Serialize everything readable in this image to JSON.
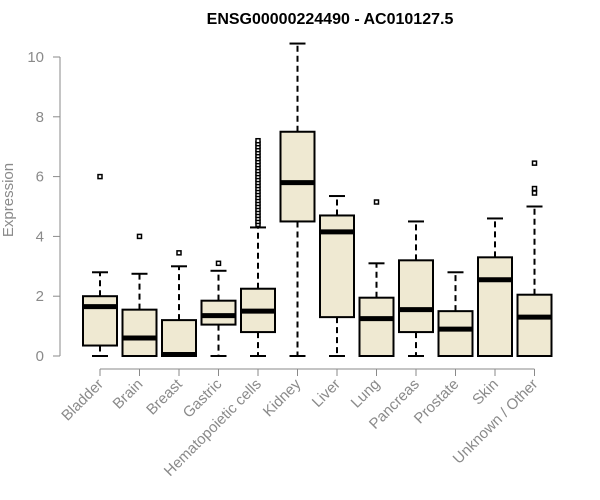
{
  "chart_data": {
    "type": "box",
    "title": "ENSG00000224490 - AC010127.5",
    "xlabel": "",
    "ylabel": "Expression",
    "ylim": [
      0,
      10.5
    ],
    "yticks": [
      0,
      2,
      4,
      6,
      8,
      10
    ],
    "grid": false,
    "legend": "none",
    "categories": [
      "Bladder",
      "Brain",
      "Breast",
      "Gastric",
      "Hematopoietic cells",
      "Kidney",
      "Liver",
      "Lung",
      "Pancreas",
      "Prostate",
      "Skin",
      "Unknown / Other"
    ],
    "boxes": [
      {
        "whisker_low": 0.0,
        "q1": 0.35,
        "median": 1.65,
        "q3": 2.0,
        "whisker_high": 2.8,
        "outliers": [
          6.0
        ]
      },
      {
        "whisker_low": 0.0,
        "q1": 0.0,
        "median": 0.6,
        "q3": 1.55,
        "whisker_high": 2.75,
        "outliers": [
          4.0
        ]
      },
      {
        "whisker_low": 0.0,
        "q1": 0.0,
        "median": 0.05,
        "q3": 1.2,
        "whisker_high": 3.0,
        "outliers": [
          3.45
        ]
      },
      {
        "whisker_low": 0.0,
        "q1": 1.05,
        "median": 1.35,
        "q3": 1.85,
        "whisker_high": 2.85,
        "outliers": [
          3.1
        ]
      },
      {
        "whisker_low": 0.0,
        "q1": 0.8,
        "median": 1.5,
        "q3": 2.25,
        "whisker_high": 4.3,
        "outliers": [
          4.4,
          4.5,
          4.6,
          4.7,
          4.8,
          4.9,
          5.0,
          5.1,
          5.2,
          5.3,
          5.4,
          5.5,
          5.6,
          5.7,
          5.8,
          5.9,
          6.0,
          6.1,
          6.2,
          6.3,
          6.4,
          6.5,
          6.6,
          6.7,
          6.8,
          6.9,
          7.0,
          7.1,
          7.2
        ]
      },
      {
        "whisker_low": 0.0,
        "q1": 4.5,
        "median": 5.8,
        "q3": 7.5,
        "whisker_high": 10.45,
        "outliers": []
      },
      {
        "whisker_low": 0.0,
        "q1": 1.3,
        "median": 4.15,
        "q3": 4.7,
        "whisker_high": 5.35,
        "outliers": []
      },
      {
        "whisker_low": 0.0,
        "q1": 0.0,
        "median": 1.25,
        "q3": 1.95,
        "whisker_high": 3.1,
        "outliers": [
          5.15
        ]
      },
      {
        "whisker_low": 0.0,
        "q1": 0.8,
        "median": 1.55,
        "q3": 3.2,
        "whisker_high": 4.5,
        "outliers": []
      },
      {
        "whisker_low": 0.0,
        "q1": 0.0,
        "median": 0.9,
        "q3": 1.5,
        "whisker_high": 2.8,
        "outliers": []
      },
      {
        "whisker_low": 0.0,
        "q1": 0.0,
        "median": 2.55,
        "q3": 3.3,
        "whisker_high": 4.6,
        "outliers": []
      },
      {
        "whisker_low": 0.0,
        "q1": 0.0,
        "median": 1.3,
        "q3": 2.05,
        "whisker_high": 5.0,
        "outliers": [
          5.45,
          5.6,
          6.45
        ]
      }
    ]
  },
  "colors": {
    "box_fill": "#efe9d2",
    "box_stroke": "#000000",
    "axis": "#8a8a8a",
    "title": "#000000",
    "label": "#8a8a8a"
  }
}
